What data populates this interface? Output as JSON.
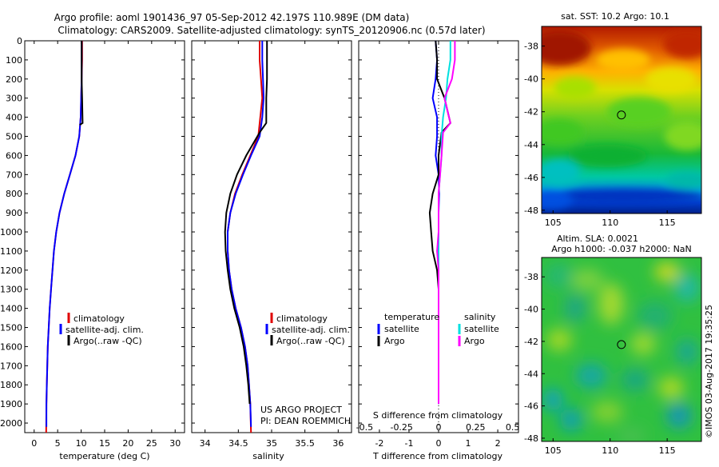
{
  "title_line1": "Argo profile: aoml 1901436_97 05-Sep-2012 42.197S 110.989E (DM data)",
  "title_line2": "Climatology: CARS2009. Satellite-adjusted climatology: synTS_20120906.nc (0.57d later)",
  "sst_title": "sat. SST: 10.2 Argo: 10.1",
  "sla_title1": "Altim. SLA: 0.0021",
  "sla_title2": "Argo h1000: -0.037 h2000: NaN",
  "credit_vertical": "©IMOS 03-Aug-2017 19:35:25",
  "project_line1": "US ARGO PROJECT",
  "project_line2": "PI: DEAN ROEMMICH",
  "colors": {
    "climatology": "#e00000",
    "satellite": "#0000ff",
    "argo": "#000000",
    "sal_satellite": "#00e0e0",
    "sal_argo": "#ff00ff"
  },
  "chart_data": [
    {
      "type": "line",
      "panel": "temperature",
      "xlabel": "temperature (deg C)",
      "ylabel": "",
      "xlim": [
        -2,
        32
      ],
      "ylim": [
        2050,
        0
      ],
      "x_ticks": [
        "0",
        "5",
        "10",
        "15",
        "20",
        "25",
        "30"
      ],
      "x_tick_values": [
        0,
        5,
        10,
        15,
        20,
        25,
        30
      ],
      "y_ticks": [
        "0",
        "100",
        "200",
        "300",
        "400",
        "500",
        "600",
        "700",
        "800",
        "900",
        "1000",
        "1100",
        "1200",
        "1300",
        "1400",
        "1500",
        "1600",
        "1700",
        "1800",
        "1900",
        "2000"
      ],
      "y_tick_values": [
        0,
        100,
        200,
        300,
        400,
        500,
        600,
        700,
        800,
        900,
        1000,
        1100,
        1200,
        1300,
        1400,
        1500,
        1600,
        1700,
        1800,
        1900,
        2000
      ],
      "legend": [
        "climatology",
        "satellite-adj. clim.",
        "Argo(..raw -QC)"
      ],
      "series": [
        {
          "name": "climatology",
          "color": "#e00000",
          "x": [
            10.2,
            10.2,
            10.1,
            10.0,
            9.9,
            9.6,
            8.8,
            7.6,
            6.4,
            5.4,
            4.7,
            4.2,
            3.9,
            3.6,
            3.3,
            3.1,
            2.9,
            2.8,
            2.7,
            2.6,
            2.55
          ],
          "y": [
            0,
            100,
            200,
            300,
            400,
            500,
            600,
            700,
            800,
            900,
            1000,
            1100,
            1200,
            1300,
            1400,
            1500,
            1600,
            1700,
            1800,
            1900,
            2050
          ]
        },
        {
          "name": "satellite-adj. clim.",
          "color": "#0000ff",
          "x": [
            10.1,
            10.1,
            10.1,
            10.0,
            9.9,
            9.6,
            8.8,
            7.6,
            6.4,
            5.4,
            4.7,
            4.2,
            3.9,
            3.6,
            3.3,
            3.1,
            2.9,
            2.8,
            2.7,
            2.6,
            2.6
          ],
          "y": [
            0,
            100,
            200,
            300,
            400,
            500,
            600,
            700,
            800,
            900,
            1000,
            1100,
            1200,
            1300,
            1400,
            1500,
            1600,
            1700,
            1800,
            1900,
            2020
          ]
        },
        {
          "name": "Argo(..raw -QC)",
          "color": "#000000",
          "x": [
            10.1,
            10.1,
            10.1,
            10.2,
            10.3,
            9.7
          ],
          "y": [
            0,
            100,
            200,
            300,
            430,
            440
          ]
        }
      ]
    },
    {
      "type": "line",
      "panel": "salinity",
      "xlabel": "salinity",
      "xlim": [
        33.8,
        36.2
      ],
      "ylim": [
        2050,
        0
      ],
      "x_ticks": [
        "34",
        "34.5",
        "35",
        "35.5",
        "36"
      ],
      "x_tick_values": [
        34,
        34.5,
        35,
        35.5,
        36
      ],
      "legend": [
        "climatology",
        "satellite-adj. clim.",
        "Argo(..raw -QC)"
      ],
      "series": [
        {
          "name": "climatology",
          "color": "#e00000",
          "x": [
            34.82,
            34.82,
            34.84,
            34.86,
            34.83,
            34.8,
            34.68,
            34.56,
            34.45,
            34.38,
            34.34,
            34.34,
            34.36,
            34.4,
            34.46,
            34.54,
            34.6,
            34.64,
            34.66,
            34.68,
            34.69
          ],
          "y": [
            0,
            100,
            200,
            300,
            400,
            500,
            600,
            700,
            800,
            900,
            1000,
            1100,
            1200,
            1300,
            1400,
            1500,
            1600,
            1700,
            1800,
            1900,
            2050
          ]
        },
        {
          "name": "satellite-adj. clim.",
          "color": "#0000ff",
          "x": [
            34.86,
            34.86,
            34.87,
            34.88,
            34.86,
            34.82,
            34.69,
            34.57,
            34.46,
            34.38,
            34.34,
            34.34,
            34.36,
            34.4,
            34.46,
            34.54,
            34.6,
            34.64,
            34.66,
            34.68,
            34.69
          ],
          "y": [
            0,
            100,
            200,
            300,
            400,
            500,
            600,
            700,
            800,
            900,
            1000,
            1100,
            1200,
            1300,
            1400,
            1500,
            1600,
            1700,
            1800,
            1900,
            2020
          ]
        },
        {
          "name": "Argo(..raw -QC)",
          "color": "#000000",
          "x": [
            34.93,
            34.93,
            34.93,
            34.92,
            34.92,
            34.82,
            34.62,
            34.48,
            34.38,
            34.32,
            34.3,
            34.31,
            34.34,
            34.38,
            34.44,
            34.52,
            34.58,
            34.62,
            34.65,
            34.67
          ],
          "y": [
            0,
            100,
            200,
            300,
            430,
            480,
            600,
            700,
            800,
            900,
            1000,
            1100,
            1200,
            1300,
            1400,
            1500,
            1600,
            1700,
            1800,
            1900
          ]
        }
      ]
    },
    {
      "type": "line",
      "panel": "difference",
      "xlabel": "T difference from climatology",
      "xlabel_top": "S difference from climatology",
      "xlim": [
        -2.7,
        2.7
      ],
      "ylim": [
        2050,
        0
      ],
      "x_ticks": [
        "-2",
        "-1",
        "0",
        "1",
        "2"
      ],
      "x_tick_values": [
        -2,
        -1,
        0,
        1,
        2
      ],
      "s_ticks": [
        "-0.5",
        "-0.25",
        "0",
        "0.25",
        "0.5"
      ],
      "s_tick_values": [
        -0.5,
        -0.25,
        0,
        0.25,
        0.5
      ],
      "s_scale": 0.2,
      "legend_headers": [
        "temperature",
        "salinity"
      ],
      "legend": [
        "satellite",
        "Argo",
        "satellite",
        "Argo"
      ],
      "series": [
        {
          "name": "temperature satellite",
          "color": "#0000ff",
          "x": [
            -0.1,
            -0.05,
            -0.1,
            -0.2,
            -0.05,
            -0.05,
            -0.1,
            0.0,
            0.02,
            0.0,
            0.0,
            0.0,
            0.0,
            0.0,
            0.0,
            0.0,
            0.0,
            0.0,
            0.0,
            0.0
          ],
          "y": [
            0,
            100,
            200,
            300,
            400,
            500,
            600,
            700,
            800,
            900,
            1000,
            1100,
            1200,
            1300,
            1400,
            1500,
            1600,
            1700,
            1800,
            1900
          ]
        },
        {
          "name": "temperature Argo",
          "color": "#000000",
          "x": [
            -0.1,
            -0.05,
            -0.05,
            0.2,
            0.4,
            0.1,
            0.0,
            0.0,
            -0.2,
            -0.3,
            -0.25,
            -0.2,
            -0.05,
            0.0,
            0.0,
            0.0,
            0.0,
            0.0,
            0.0,
            0.0
          ],
          "y": [
            0,
            100,
            200,
            300,
            430,
            480,
            600,
            700,
            800,
            900,
            1000,
            1100,
            1200,
            1300,
            1400,
            1500,
            1600,
            1700,
            1800,
            1900
          ]
        },
        {
          "name": "salinity satellite",
          "color": "#00e0e0",
          "x": [
            0.08,
            0.08,
            0.06,
            0.05,
            0.03,
            0.02,
            0.02,
            0.01,
            0.0,
            0.0,
            0.0,
            0.0,
            0.0,
            0.0,
            0.0,
            0.0,
            0.0,
            0.0,
            0.0,
            0.0
          ],
          "y": [
            0,
            100,
            200,
            300,
            400,
            500,
            600,
            700,
            800,
            900,
            1000,
            1100,
            1200,
            1300,
            1400,
            1500,
            1600,
            1700,
            1800,
            1900
          ]
        },
        {
          "name": "salinity Argo",
          "color": "#ff00ff",
          "x": [
            0.11,
            0.11,
            0.09,
            0.04,
            0.08,
            0.03,
            0.02,
            0.01,
            0.0,
            0.0,
            0.0,
            -0.01,
            0.0,
            0.0,
            0.0,
            0.0,
            0.0,
            0.0,
            0.0,
            0.0
          ],
          "y": [
            0,
            100,
            200,
            300,
            430,
            480,
            600,
            700,
            800,
            900,
            1000,
            1100,
            1200,
            1300,
            1400,
            1500,
            1600,
            1700,
            1800,
            1900
          ]
        }
      ]
    },
    {
      "type": "heatmap",
      "panel": "sst_map",
      "title": "sat. SST: 10.2 Argo: 10.1",
      "x_ticks": [
        "105",
        "110",
        "115"
      ],
      "x_tick_values": [
        105,
        110,
        115
      ],
      "y_ticks": [
        "-38",
        "-40",
        "-42",
        "-44",
        "-46",
        "-48"
      ],
      "y_tick_values": [
        -38,
        -40,
        -42,
        -44,
        -46,
        -48
      ],
      "xlim": [
        104,
        118
      ],
      "ylim": [
        -48.2,
        -36.8
      ],
      "marker": {
        "lon": 110.989,
        "lat": -42.197
      }
    },
    {
      "type": "heatmap",
      "panel": "sla_map",
      "title": "Altim. SLA: 0.0021",
      "x_ticks": [
        "105",
        "110",
        "115"
      ],
      "x_tick_values": [
        105,
        110,
        115
      ],
      "y_ticks": [
        "-38",
        "-40",
        "-42",
        "-44",
        "-46",
        "-48"
      ],
      "y_tick_values": [
        -38,
        -40,
        -42,
        -44,
        -46,
        -48
      ],
      "xlim": [
        104,
        118
      ],
      "ylim": [
        -48.2,
        -36.8
      ],
      "marker": {
        "lon": 110.989,
        "lat": -42.197
      }
    }
  ]
}
